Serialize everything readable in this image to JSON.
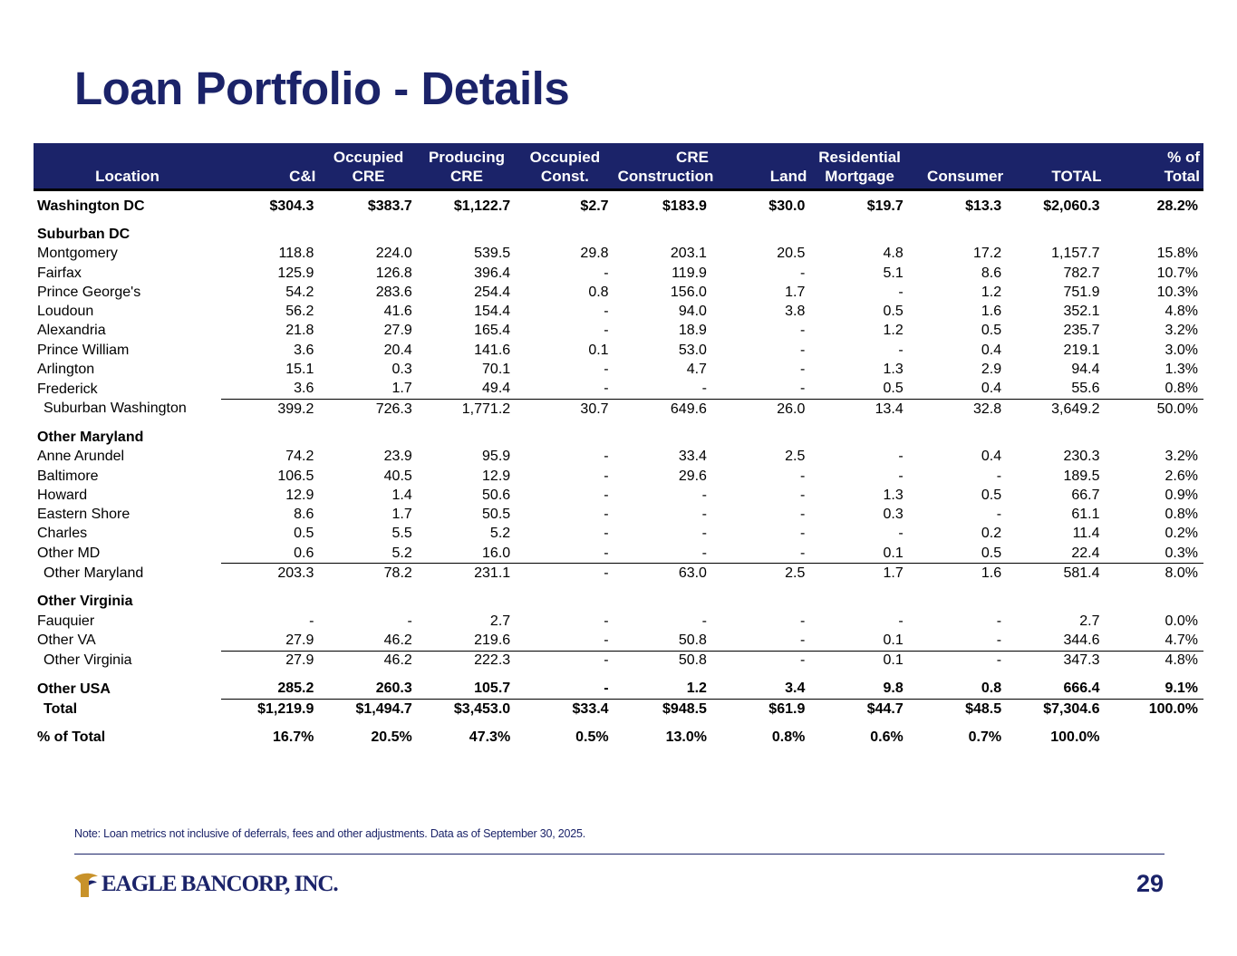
{
  "title": "Loan Portfolio - Details",
  "columns": [
    {
      "line1": "",
      "line2": "Location"
    },
    {
      "line1": "",
      "line2": "C&I"
    },
    {
      "line1": "Occupied",
      "line2": "CRE"
    },
    {
      "line1": "Producing",
      "line2": "CRE"
    },
    {
      "line1": "Occupied",
      "line2": "Const."
    },
    {
      "line1": "CRE",
      "line2": "Construction"
    },
    {
      "line1": "",
      "line2": "Land"
    },
    {
      "line1": "Residential",
      "line2": "Mortgage"
    },
    {
      "line1": "",
      "line2": "Consumer"
    },
    {
      "line1": "",
      "line2": "TOTAL"
    },
    {
      "line1": "% of",
      "line2": "Total"
    }
  ],
  "rows": [
    {
      "type": "spacer-sm"
    },
    {
      "type": "bold",
      "label": "Washington DC",
      "values": [
        "$304.3",
        "$383.7",
        "$1,122.7",
        "$2.7",
        "$183.9",
        "$30.0",
        "$19.7",
        "$13.3",
        "$2,060.3",
        "28.2%"
      ]
    },
    {
      "type": "spacer"
    },
    {
      "type": "section",
      "label": "Suburban DC"
    },
    {
      "type": "data",
      "label": "Montgomery",
      "values": [
        "118.8",
        "224.0",
        "539.5",
        "29.8",
        "203.1",
        "20.5",
        "4.8",
        "17.2",
        "1,157.7",
        "15.8%"
      ]
    },
    {
      "type": "data",
      "label": "Fairfax",
      "values": [
        "125.9",
        "126.8",
        "396.4",
        "-",
        "119.9",
        "-",
        "5.1",
        "8.6",
        "782.7",
        "10.7%"
      ]
    },
    {
      "type": "data",
      "label": "Prince George's",
      "values": [
        "54.2",
        "283.6",
        "254.4",
        "0.8",
        "156.0",
        "1.7",
        "-",
        "1.2",
        "751.9",
        "10.3%"
      ]
    },
    {
      "type": "data",
      "label": "Loudoun",
      "values": [
        "56.2",
        "41.6",
        "154.4",
        "-",
        "94.0",
        "3.8",
        "0.5",
        "1.6",
        "352.1",
        "4.8%"
      ]
    },
    {
      "type": "data",
      "label": "Alexandria",
      "values": [
        "21.8",
        "27.9",
        "165.4",
        "-",
        "18.9",
        "-",
        "1.2",
        "0.5",
        "235.7",
        "3.2%"
      ]
    },
    {
      "type": "data",
      "label": "Prince William",
      "values": [
        "3.6",
        "20.4",
        "141.6",
        "0.1",
        "53.0",
        "-",
        "-",
        "0.4",
        "219.1",
        "3.0%"
      ]
    },
    {
      "type": "data",
      "label": "Arlington",
      "values": [
        "15.1",
        "0.3",
        "70.1",
        "-",
        "4.7",
        "-",
        "1.3",
        "2.9",
        "94.4",
        "1.3%"
      ]
    },
    {
      "type": "data",
      "label": "Frederick",
      "values": [
        "3.6",
        "1.7",
        "49.4",
        "-",
        "-",
        "-",
        "0.5",
        "0.4",
        "55.6",
        "0.8%"
      ]
    },
    {
      "type": "subtotal",
      "label": "Suburban Washington",
      "values": [
        "399.2",
        "726.3",
        "1,771.2",
        "30.7",
        "649.6",
        "26.0",
        "13.4",
        "32.8",
        "3,649.2",
        "50.0%"
      ]
    },
    {
      "type": "spacer"
    },
    {
      "type": "section",
      "label": "Other Maryland"
    },
    {
      "type": "data",
      "label": "Anne Arundel",
      "values": [
        "74.2",
        "23.9",
        "95.9",
        "-",
        "33.4",
        "2.5",
        "-",
        "0.4",
        "230.3",
        "3.2%"
      ]
    },
    {
      "type": "data",
      "label": "Baltimore",
      "values": [
        "106.5",
        "40.5",
        "12.9",
        "-",
        "29.6",
        "-",
        "-",
        "-",
        "189.5",
        "2.6%"
      ]
    },
    {
      "type": "data",
      "label": "Howard",
      "values": [
        "12.9",
        "1.4",
        "50.6",
        "-",
        "-",
        "-",
        "1.3",
        "0.5",
        "66.7",
        "0.9%"
      ]
    },
    {
      "type": "data",
      "label": "Eastern Shore",
      "values": [
        "8.6",
        "1.7",
        "50.5",
        "-",
        "-",
        "-",
        "0.3",
        "-",
        "61.1",
        "0.8%"
      ]
    },
    {
      "type": "data",
      "label": "Charles",
      "values": [
        "0.5",
        "5.5",
        "5.2",
        "-",
        "-",
        "-",
        "-",
        "0.2",
        "11.4",
        "0.2%"
      ]
    },
    {
      "type": "data",
      "label": "Other MD",
      "values": [
        "0.6",
        "5.2",
        "16.0",
        "-",
        "-",
        "-",
        "0.1",
        "0.5",
        "22.4",
        "0.3%"
      ]
    },
    {
      "type": "subtotal",
      "label": "Other Maryland",
      "values": [
        "203.3",
        "78.2",
        "231.1",
        "-",
        "63.0",
        "2.5",
        "1.7",
        "1.6",
        "581.4",
        "8.0%"
      ]
    },
    {
      "type": "spacer"
    },
    {
      "type": "section",
      "label": "Other Virginia"
    },
    {
      "type": "data",
      "label": "Fauquier",
      "values": [
        "-",
        "-",
        "2.7",
        "-",
        "-",
        "-",
        "-",
        "-",
        "2.7",
        "0.0%"
      ]
    },
    {
      "type": "data",
      "label": "Other VA",
      "values": [
        "27.9",
        "46.2",
        "219.6",
        "-",
        "50.8",
        "-",
        "0.1",
        "-",
        "344.6",
        "4.7%"
      ]
    },
    {
      "type": "subtotal",
      "label": "Other Virginia",
      "values": [
        "27.9",
        "46.2",
        "222.3",
        "-",
        "50.8",
        "-",
        "0.1",
        "-",
        "347.3",
        "4.8%"
      ]
    },
    {
      "type": "spacer"
    },
    {
      "type": "bold-label",
      "label": "Other USA",
      "values": [
        "285.2",
        "260.3",
        "105.7",
        "-",
        "1.2",
        "3.4",
        "9.8",
        "0.8",
        "666.4",
        "9.1%"
      ]
    },
    {
      "type": "total",
      "label": "Total",
      "values": [
        "$1,219.9",
        "$1,494.7",
        "$3,453.0",
        "$33.4",
        "$948.5",
        "$61.9",
        "$44.7",
        "$48.5",
        "$7,304.6",
        "100.0%"
      ]
    },
    {
      "type": "spacer"
    },
    {
      "type": "bold-label",
      "label": "% of Total",
      "values": [
        "16.7%",
        "20.5%",
        "47.3%",
        "0.5%",
        "13.0%",
        "0.8%",
        "0.6%",
        "0.7%",
        "100.0%",
        ""
      ]
    }
  ],
  "note": "Note: Loan metrics not inclusive of deferrals, fees and other adjustments. Data as of September 30, 2025.",
  "footer": {
    "logo_text": "EAGLE BANCORP, INC.",
    "page_number": "29"
  },
  "colors": {
    "brand_navy": "#1b2369",
    "logo_gold": "#c8922a"
  }
}
